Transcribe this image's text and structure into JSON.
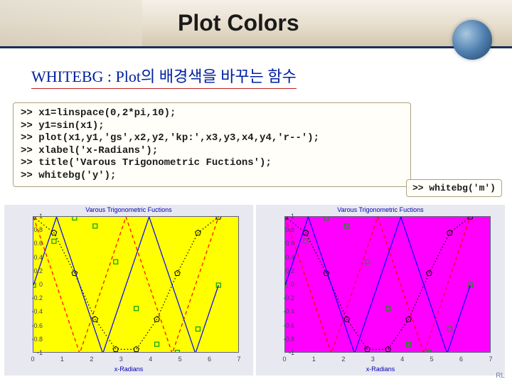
{
  "header": {
    "title": "Plot Colors"
  },
  "subtitle": "WHITEBG : Plot의 배경색을 바꾸는 함수",
  "code": {
    "lines": [
      ">> x1=linspace(0,2*pi,10);",
      ">> y1=sin(x1);",
      ">> plot(x1,y1,'gs',x2,y2,'kp:',x3,y3,x4,y4,'r--');",
      ">> xlabel('x-Radians');",
      ">> title('Varous Trigonometric Fuctions');",
      ">> whitebg('y');"
    ]
  },
  "code_small": ">> whitebg('m')",
  "chart": {
    "title": "Varous Trigonometric Fuctions",
    "xlabel": "x-Radians",
    "xlim": [
      0,
      7
    ],
    "xtick_step": 1,
    "ylim": [
      -1,
      1
    ],
    "ytick_step": 0.2,
    "title_fontsize": 9,
    "label_fontsize": 9,
    "series": [
      {
        "type": "marker",
        "marker": "square",
        "color": "#00a000",
        "x": [
          0,
          0.698,
          1.396,
          2.094,
          2.793,
          3.491,
          4.189,
          4.887,
          5.585,
          6.283
        ],
        "y": [
          0,
          0.643,
          0.985,
          0.866,
          0.342,
          -0.342,
          -0.866,
          -0.985,
          -0.643,
          0
        ]
      },
      {
        "type": "line_marker",
        "marker": "pentagon",
        "color": "#000000",
        "dash": "dot",
        "x": [
          0,
          0.698,
          1.396,
          2.094,
          2.793,
          3.491,
          4.189,
          4.887,
          5.585,
          6.283
        ],
        "y": [
          1,
          0.766,
          0.174,
          -0.5,
          -0.94,
          -0.94,
          -0.5,
          0.174,
          0.766,
          1
        ]
      },
      {
        "type": "line",
        "color": "#0000ff",
        "dash": "solid",
        "x": [
          0,
          0.785,
          1.571,
          2.356,
          3.142,
          3.927,
          4.712,
          5.498,
          6.283
        ],
        "y": [
          0,
          1,
          0,
          -1,
          0,
          1,
          0,
          -1,
          0
        ]
      },
      {
        "type": "line",
        "color": "#ff0000",
        "dash": "dash",
        "x": [
          0,
          0.785,
          1.571,
          2.356,
          3.142,
          3.927,
          4.712,
          5.498,
          6.283
        ],
        "y": [
          1,
          0,
          -1,
          0,
          1,
          0,
          -1,
          0,
          1
        ]
      }
    ]
  },
  "charts": [
    {
      "background_color": "#ffff00",
      "outer_bg": "#e8e8f0"
    },
    {
      "background_color": "#ff00ff",
      "outer_bg": "#e8e8f0"
    }
  ],
  "watermark": "RL"
}
